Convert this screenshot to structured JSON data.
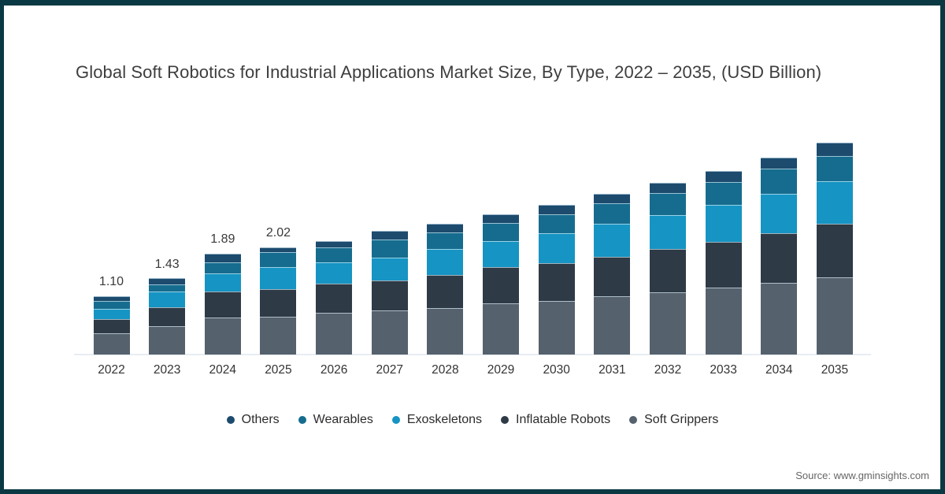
{
  "chart_data": {
    "type": "bar",
    "stacked": true,
    "title": "Global Soft Robotics for Industrial Applications Market Size, By Type, 2022 – 2035, (USD Billion)",
    "unit": "USD Billion",
    "categories": [
      "2022",
      "2023",
      "2024",
      "2025",
      "2026",
      "2027",
      "2028",
      "2029",
      "2030",
      "2031",
      "2032",
      "2033",
      "2034",
      "2035"
    ],
    "series": [
      {
        "name": "Soft Grippers",
        "color": "#55616d",
        "values": [
          0.4,
          0.53,
          0.69,
          0.71,
          0.78,
          0.83,
          0.87,
          0.97,
          1.01,
          1.1,
          1.17,
          1.26,
          1.35,
          1.45
        ]
      },
      {
        "name": "Inflatable Robots",
        "color": "#2e3a46",
        "values": [
          0.26,
          0.36,
          0.49,
          0.52,
          0.55,
          0.57,
          0.63,
          0.67,
          0.71,
          0.74,
          0.81,
          0.86,
          0.94,
          1.01
        ]
      },
      {
        "name": "Exoskeletons",
        "color": "#1694c3",
        "values": [
          0.2,
          0.29,
          0.34,
          0.41,
          0.41,
          0.43,
          0.48,
          0.49,
          0.56,
          0.62,
          0.64,
          0.69,
          0.74,
          0.8
        ]
      },
      {
        "name": "Wearables",
        "color": "#166c8e",
        "values": [
          0.14,
          0.14,
          0.22,
          0.28,
          0.28,
          0.34,
          0.32,
          0.34,
          0.36,
          0.39,
          0.41,
          0.44,
          0.47,
          0.47
        ]
      },
      {
        "name": "Others",
        "color": "#1c4b6e",
        "values": [
          0.1,
          0.11,
          0.15,
          0.1,
          0.12,
          0.15,
          0.16,
          0.17,
          0.17,
          0.17,
          0.2,
          0.21,
          0.2,
          0.25
        ]
      }
    ],
    "totals": [
      1.1,
      1.43,
      1.89,
      2.02,
      2.14,
      2.32,
      2.46,
      2.64,
      2.81,
      3.02,
      3.23,
      3.46,
      3.7,
      3.98
    ],
    "bar_labels": [
      "1.10",
      "1.43",
      "1.89",
      "2.02",
      "",
      "",
      "",
      "",
      "",
      "",
      "",
      "",
      "",
      ""
    ],
    "legend_order": [
      "Others",
      "Wearables",
      "Exoskeletons",
      "Inflatable Robots",
      "Soft Grippers"
    ],
    "legend_position": "bottom",
    "xlabel": "",
    "ylabel": "",
    "ylim": [
      0,
      4.2
    ],
    "grid": false
  },
  "colors": {
    "frame_border": "#0b3943",
    "axis_line": "#e7edf2",
    "title_text": "#3e3e3e",
    "axis_label_text": "#333333",
    "source_text": "#666666",
    "background": "#ffffff"
  },
  "source_note": "Source: www.gminsights.com"
}
